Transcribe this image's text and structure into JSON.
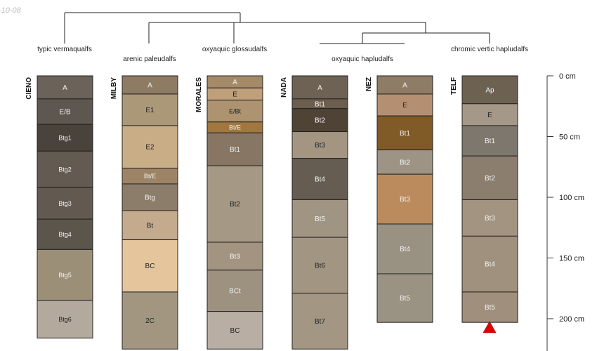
{
  "date_fragment": "-10-08",
  "depth_axis": {
    "unit": "cm",
    "range": [
      0,
      225
    ],
    "ticks": [
      {
        "depth": 0,
        "label": "0 cm"
      },
      {
        "depth": 50,
        "label": "50 cm"
      },
      {
        "depth": 100,
        "label": "100 cm"
      },
      {
        "depth": 150,
        "label": "150 cm"
      },
      {
        "depth": 200,
        "label": "200 cm"
      }
    ]
  },
  "taxa": [
    "typic vermaqualfs",
    "arenic paleudalfs",
    "oxyaquic glossudalfs",
    "oxyaquic hapludalfs",
    "chromic vertic hapludalfs"
  ],
  "profiles": [
    {
      "name": "CIENO",
      "horizons": [
        {
          "name": "A",
          "top": 0,
          "bottom": 19,
          "color": "#6b635a"
        },
        {
          "name": "E/B",
          "top": 19,
          "bottom": 40,
          "color": "#5e574f"
        },
        {
          "name": "Btg1",
          "top": 40,
          "bottom": 62,
          "color": "#4a433c"
        },
        {
          "name": "Btg2",
          "top": 62,
          "bottom": 92,
          "color": "#635b52"
        },
        {
          "name": "Btg3",
          "top": 92,
          "bottom": 118,
          "color": "#625a50"
        },
        {
          "name": "Btg4",
          "top": 118,
          "bottom": 143,
          "color": "#5c554c"
        },
        {
          "name": "Btg5",
          "top": 143,
          "bottom": 185,
          "color": "#9b8f77"
        },
        {
          "name": "Btg6",
          "top": 185,
          "bottom": 216,
          "color": "#b3a99d"
        }
      ]
    },
    {
      "name": "MILBY",
      "horizons": [
        {
          "name": "A",
          "top": 0,
          "bottom": 15,
          "color": "#8d7b64"
        },
        {
          "name": "E1",
          "top": 15,
          "bottom": 41,
          "color": "#ab9879"
        },
        {
          "name": "E2",
          "top": 41,
          "bottom": 76,
          "color": "#c9ad87"
        },
        {
          "name": "Bt/E",
          "top": 76,
          "bottom": 89,
          "color": "#9e8466"
        },
        {
          "name": "Btg",
          "top": 89,
          "bottom": 111,
          "color": "#8c7c6a"
        },
        {
          "name": "Bt",
          "top": 111,
          "bottom": 135,
          "color": "#c4ab8d"
        },
        {
          "name": "BC",
          "top": 135,
          "bottom": 178,
          "color": "#e5c69c"
        },
        {
          "name": "2C",
          "top": 178,
          "bottom": 225,
          "color": "#a29680"
        }
      ]
    },
    {
      "name": "MORALES",
      "horizons": [
        {
          "name": "A",
          "top": 0,
          "bottom": 10,
          "color": "#a58a69"
        },
        {
          "name": "E",
          "top": 10,
          "bottom": 20,
          "color": "#bfa07a"
        },
        {
          "name": "E/Bt",
          "top": 20,
          "bottom": 38,
          "color": "#ad9370"
        },
        {
          "name": "Bt/E",
          "top": 38,
          "bottom": 47,
          "color": "#a0773f"
        },
        {
          "name": "Bt1",
          "top": 47,
          "bottom": 74,
          "color": "#877664"
        },
        {
          "name": "Bt2",
          "top": 74,
          "bottom": 137,
          "color": "#a59885"
        },
        {
          "name": "Bt3",
          "top": 137,
          "bottom": 160,
          "color": "#a29480"
        },
        {
          "name": "BCt",
          "top": 160,
          "bottom": 194,
          "color": "#9d917f"
        },
        {
          "name": "BC",
          "top": 194,
          "bottom": 225,
          "color": "#b8aea3"
        }
      ]
    },
    {
      "name": "NADA",
      "horizons": [
        {
          "name": "A",
          "top": 0,
          "bottom": 19,
          "color": "#6d6254"
        },
        {
          "name": "Bt1",
          "top": 19,
          "bottom": 27,
          "color": "#6b5e4e"
        },
        {
          "name": "Bt2",
          "top": 27,
          "bottom": 46,
          "color": "#4f4336"
        },
        {
          "name": "Bt3",
          "top": 46,
          "bottom": 68,
          "color": "#a39582"
        },
        {
          "name": "Bt4",
          "top": 68,
          "bottom": 102,
          "color": "#655d52"
        },
        {
          "name": "Bt5",
          "top": 102,
          "bottom": 133,
          "color": "#a09482"
        },
        {
          "name": "Bt6",
          "top": 133,
          "bottom": 179,
          "color": "#a29683"
        },
        {
          "name": "Bt7",
          "top": 179,
          "bottom": 225,
          "color": "#a39682"
        }
      ]
    },
    {
      "name": "NEZ",
      "horizons": [
        {
          "name": "A",
          "top": 0,
          "bottom": 15,
          "color": "#8f7c66"
        },
        {
          "name": "E",
          "top": 15,
          "bottom": 33,
          "color": "#b48f72"
        },
        {
          "name": "Bt1",
          "top": 33,
          "bottom": 61,
          "color": "#805a27"
        },
        {
          "name": "Bt2",
          "top": 61,
          "bottom": 81,
          "color": "#9e9486"
        },
        {
          "name": "Bt3",
          "top": 81,
          "bottom": 122,
          "color": "#bb8b5d"
        },
        {
          "name": "Bt4",
          "top": 122,
          "bottom": 163,
          "color": "#999282"
        },
        {
          "name": "Bt5",
          "top": 163,
          "bottom": 203,
          "color": "#9a9283"
        }
      ]
    },
    {
      "name": "TELF",
      "horizons": [
        {
          "name": "Ap",
          "top": 0,
          "bottom": 23,
          "color": "#6d6252"
        },
        {
          "name": "E",
          "top": 23,
          "bottom": 41,
          "color": "#a59889"
        },
        {
          "name": "Bt1",
          "top": 41,
          "bottom": 66,
          "color": "#7e776e"
        },
        {
          "name": "Bt2",
          "top": 66,
          "bottom": 102,
          "color": "#8c7e6f"
        },
        {
          "name": "Bt3",
          "top": 102,
          "bottom": 132,
          "color": "#a39381"
        },
        {
          "name": "Bt4",
          "top": 132,
          "bottom": 178,
          "color": "#a0917e"
        },
        {
          "name": "Bt5",
          "top": 178,
          "bottom": 203,
          "color": "#a08f7c"
        }
      ]
    }
  ]
}
